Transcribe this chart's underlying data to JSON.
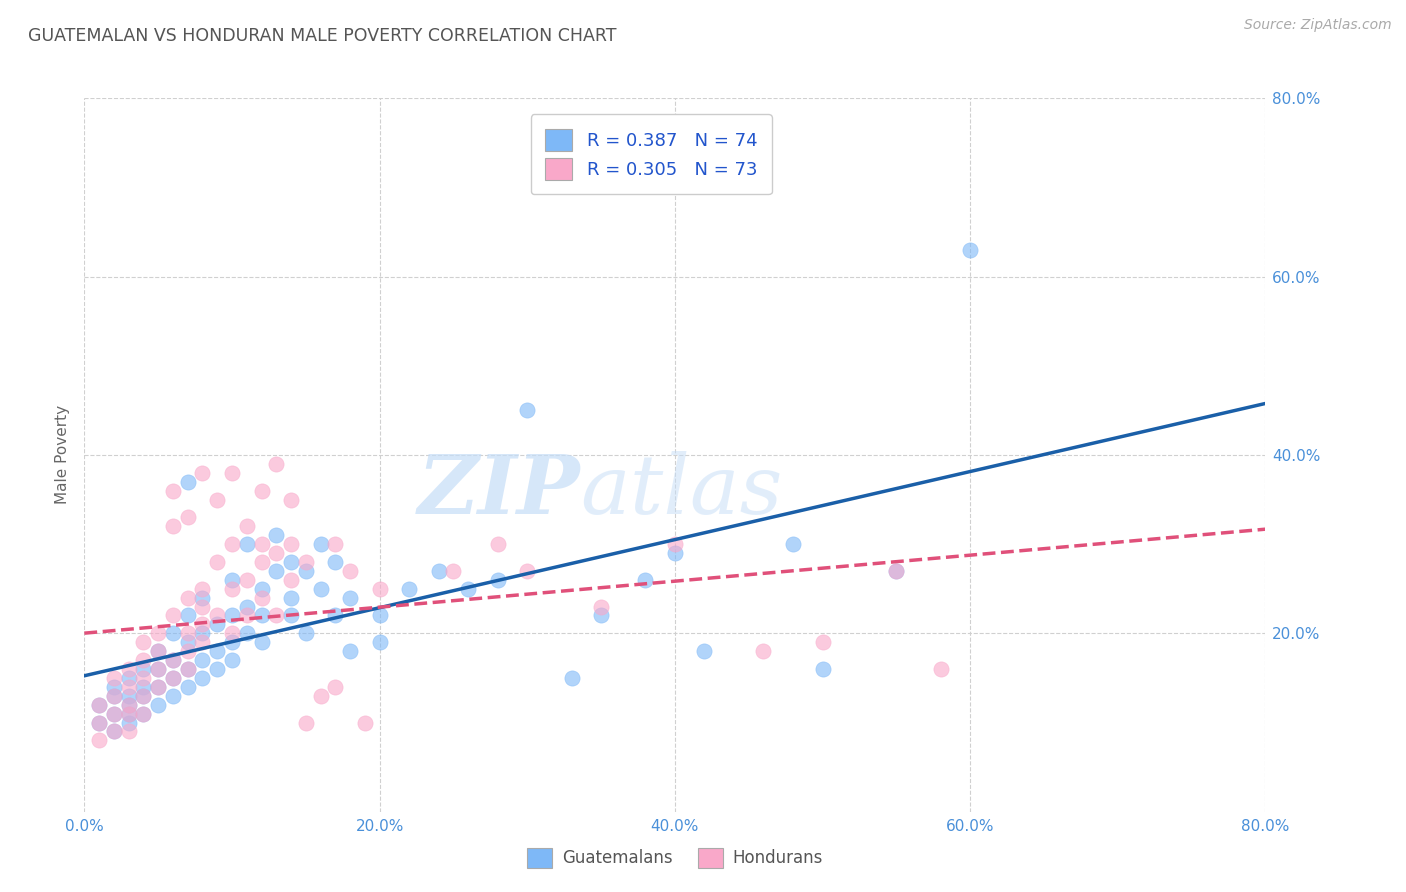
{
  "title": "GUATEMALAN VS HONDURAN MALE POVERTY CORRELATION CHART",
  "source": "Source: ZipAtlas.com",
  "ylabel": "Male Poverty",
  "xlim": [
    0.0,
    0.8
  ],
  "ylim": [
    0.0,
    0.8
  ],
  "xtick_labels": [
    "0.0%",
    "20.0%",
    "40.0%",
    "60.0%",
    "80.0%"
  ],
  "xtick_vals": [
    0.0,
    0.2,
    0.4,
    0.6,
    0.8
  ],
  "ytick_labels": [
    "20.0%",
    "40.0%",
    "60.0%",
    "80.0%"
  ],
  "ytick_vals": [
    0.2,
    0.4,
    0.6,
    0.8
  ],
  "guatemalan_color": "#7eb8f7",
  "honduran_color": "#f9a8c9",
  "guatemalan_line_color": "#1a5fa8",
  "honduran_line_color": "#e0507a",
  "R_guatemalan": 0.387,
  "N_guatemalan": 74,
  "R_honduran": 0.305,
  "N_honduran": 73,
  "background_color": "#ffffff",
  "grid_color": "#cccccc",
  "guatemalan_scatter": [
    [
      0.01,
      0.1
    ],
    [
      0.01,
      0.12
    ],
    [
      0.02,
      0.11
    ],
    [
      0.02,
      0.13
    ],
    [
      0.02,
      0.14
    ],
    [
      0.02,
      0.09
    ],
    [
      0.03,
      0.12
    ],
    [
      0.03,
      0.1
    ],
    [
      0.03,
      0.15
    ],
    [
      0.03,
      0.11
    ],
    [
      0.03,
      0.13
    ],
    [
      0.04,
      0.14
    ],
    [
      0.04,
      0.11
    ],
    [
      0.04,
      0.16
    ],
    [
      0.04,
      0.13
    ],
    [
      0.05,
      0.14
    ],
    [
      0.05,
      0.12
    ],
    [
      0.05,
      0.16
    ],
    [
      0.05,
      0.18
    ],
    [
      0.06,
      0.15
    ],
    [
      0.06,
      0.17
    ],
    [
      0.06,
      0.13
    ],
    [
      0.06,
      0.2
    ],
    [
      0.07,
      0.16
    ],
    [
      0.07,
      0.14
    ],
    [
      0.07,
      0.19
    ],
    [
      0.07,
      0.22
    ],
    [
      0.07,
      0.37
    ],
    [
      0.08,
      0.17
    ],
    [
      0.08,
      0.2
    ],
    [
      0.08,
      0.15
    ],
    [
      0.08,
      0.24
    ],
    [
      0.09,
      0.18
    ],
    [
      0.09,
      0.21
    ],
    [
      0.09,
      0.16
    ],
    [
      0.1,
      0.19
    ],
    [
      0.1,
      0.22
    ],
    [
      0.1,
      0.26
    ],
    [
      0.1,
      0.17
    ],
    [
      0.11,
      0.2
    ],
    [
      0.11,
      0.23
    ],
    [
      0.11,
      0.3
    ],
    [
      0.12,
      0.22
    ],
    [
      0.12,
      0.25
    ],
    [
      0.12,
      0.19
    ],
    [
      0.13,
      0.27
    ],
    [
      0.13,
      0.31
    ],
    [
      0.14,
      0.24
    ],
    [
      0.14,
      0.28
    ],
    [
      0.14,
      0.22
    ],
    [
      0.15,
      0.27
    ],
    [
      0.15,
      0.2
    ],
    [
      0.16,
      0.25
    ],
    [
      0.16,
      0.3
    ],
    [
      0.17,
      0.22
    ],
    [
      0.17,
      0.28
    ],
    [
      0.18,
      0.18
    ],
    [
      0.18,
      0.24
    ],
    [
      0.2,
      0.22
    ],
    [
      0.2,
      0.19
    ],
    [
      0.22,
      0.25
    ],
    [
      0.24,
      0.27
    ],
    [
      0.26,
      0.25
    ],
    [
      0.28,
      0.26
    ],
    [
      0.3,
      0.45
    ],
    [
      0.33,
      0.15
    ],
    [
      0.35,
      0.22
    ],
    [
      0.38,
      0.26
    ],
    [
      0.4,
      0.29
    ],
    [
      0.42,
      0.18
    ],
    [
      0.48,
      0.3
    ],
    [
      0.5,
      0.16
    ],
    [
      0.55,
      0.27
    ],
    [
      0.6,
      0.63
    ]
  ],
  "honduran_scatter": [
    [
      0.01,
      0.1
    ],
    [
      0.01,
      0.12
    ],
    [
      0.01,
      0.08
    ],
    [
      0.02,
      0.11
    ],
    [
      0.02,
      0.13
    ],
    [
      0.02,
      0.15
    ],
    [
      0.02,
      0.09
    ],
    [
      0.03,
      0.11
    ],
    [
      0.03,
      0.14
    ],
    [
      0.03,
      0.16
    ],
    [
      0.03,
      0.12
    ],
    [
      0.03,
      0.09
    ],
    [
      0.04,
      0.13
    ],
    [
      0.04,
      0.17
    ],
    [
      0.04,
      0.15
    ],
    [
      0.04,
      0.11
    ],
    [
      0.04,
      0.19
    ],
    [
      0.05,
      0.14
    ],
    [
      0.05,
      0.18
    ],
    [
      0.05,
      0.2
    ],
    [
      0.05,
      0.16
    ],
    [
      0.06,
      0.15
    ],
    [
      0.06,
      0.22
    ],
    [
      0.06,
      0.17
    ],
    [
      0.06,
      0.36
    ],
    [
      0.06,
      0.32
    ],
    [
      0.07,
      0.2
    ],
    [
      0.07,
      0.16
    ],
    [
      0.07,
      0.24
    ],
    [
      0.07,
      0.18
    ],
    [
      0.07,
      0.33
    ],
    [
      0.08,
      0.21
    ],
    [
      0.08,
      0.25
    ],
    [
      0.08,
      0.19
    ],
    [
      0.08,
      0.23
    ],
    [
      0.08,
      0.38
    ],
    [
      0.09,
      0.28
    ],
    [
      0.09,
      0.22
    ],
    [
      0.09,
      0.35
    ],
    [
      0.1,
      0.2
    ],
    [
      0.1,
      0.3
    ],
    [
      0.1,
      0.25
    ],
    [
      0.1,
      0.38
    ],
    [
      0.11,
      0.26
    ],
    [
      0.11,
      0.32
    ],
    [
      0.11,
      0.22
    ],
    [
      0.12,
      0.3
    ],
    [
      0.12,
      0.24
    ],
    [
      0.12,
      0.36
    ],
    [
      0.12,
      0.28
    ],
    [
      0.13,
      0.22
    ],
    [
      0.13,
      0.29
    ],
    [
      0.13,
      0.39
    ],
    [
      0.14,
      0.26
    ],
    [
      0.14,
      0.3
    ],
    [
      0.14,
      0.35
    ],
    [
      0.15,
      0.28
    ],
    [
      0.15,
      0.1
    ],
    [
      0.16,
      0.13
    ],
    [
      0.17,
      0.14
    ],
    [
      0.17,
      0.3
    ],
    [
      0.18,
      0.27
    ],
    [
      0.19,
      0.1
    ],
    [
      0.2,
      0.25
    ],
    [
      0.25,
      0.27
    ],
    [
      0.28,
      0.3
    ],
    [
      0.3,
      0.27
    ],
    [
      0.35,
      0.23
    ],
    [
      0.4,
      0.3
    ],
    [
      0.46,
      0.18
    ],
    [
      0.5,
      0.19
    ],
    [
      0.55,
      0.27
    ],
    [
      0.58,
      0.16
    ]
  ]
}
